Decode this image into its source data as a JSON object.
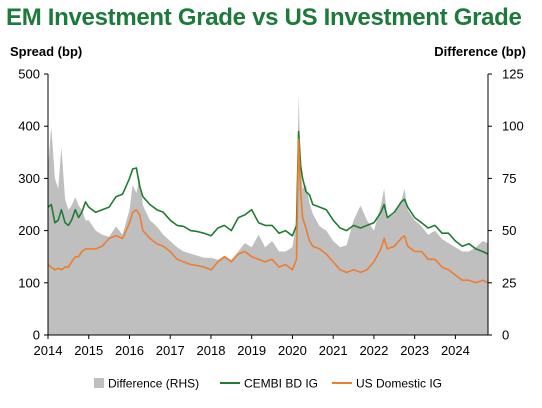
{
  "chart_data": {
    "type": "line",
    "title": "EM Investment Grade vs US Investment Grade",
    "ylabel_left": "Spread (bp)",
    "ylabel_right": "Difference (bp)",
    "x_range": [
      2014.0,
      2024.8
    ],
    "y_left_range": [
      0,
      500
    ],
    "y_right_range": [
      0,
      125
    ],
    "y_left_ticks": [
      "0",
      "100",
      "200",
      "300",
      "400",
      "500"
    ],
    "y_right_ticks": [
      "0",
      "25",
      "50",
      "75",
      "100",
      "125"
    ],
    "x_ticks": [
      "2014",
      "2015",
      "2016",
      "2017",
      "2018",
      "2019",
      "2020",
      "2021",
      "2022",
      "2023",
      "2024"
    ],
    "grid": false,
    "legend_position": "bottom",
    "colors": {
      "difference": "#bfbfbf",
      "cembi": "#1e7d32",
      "us": "#ed7d31",
      "title": "#1d7a3a"
    },
    "series": [
      {
        "name": "Difference (RHS)",
        "axis": "right",
        "style": "area",
        "x": [
          2014.0,
          2014.08,
          2014.17,
          2014.25,
          2014.33,
          2014.42,
          2014.5,
          2014.58,
          2014.67,
          2014.75,
          2014.83,
          2014.92,
          2015.0,
          2015.17,
          2015.33,
          2015.5,
          2015.67,
          2015.83,
          2016.0,
          2016.08,
          2016.17,
          2016.25,
          2016.33,
          2016.5,
          2016.67,
          2016.83,
          2017.0,
          2017.17,
          2017.33,
          2017.5,
          2017.67,
          2017.83,
          2018.0,
          2018.17,
          2018.33,
          2018.5,
          2018.67,
          2018.83,
          2019.0,
          2019.17,
          2019.33,
          2019.5,
          2019.67,
          2019.83,
          2020.0,
          2020.1,
          2020.15,
          2020.2,
          2020.25,
          2020.33,
          2020.42,
          2020.5,
          2020.67,
          2020.83,
          2021.0,
          2021.17,
          2021.33,
          2021.5,
          2021.67,
          2021.83,
          2022.0,
          2022.17,
          2022.25,
          2022.33,
          2022.5,
          2022.67,
          2022.75,
          2022.83,
          2023.0,
          2023.17,
          2023.33,
          2023.5,
          2023.67,
          2023.83,
          2024.0,
          2024.17,
          2024.33,
          2024.5,
          2024.67,
          2024.8
        ],
        "values": [
          80,
          100,
          75,
          70,
          90,
          65,
          60,
          62,
          66,
          62,
          60,
          55,
          55,
          50,
          48,
          47,
          52,
          48,
          60,
          72,
          68,
          75,
          62,
          55,
          52,
          48,
          45,
          42,
          40,
          39,
          38,
          37,
          37,
          36,
          38,
          36,
          40,
          44,
          42,
          48,
          42,
          45,
          40,
          40,
          42,
          55,
          115,
          80,
          70,
          72,
          63,
          58,
          52,
          50,
          45,
          42,
          43,
          55,
          62,
          55,
          50,
          62,
          70,
          56,
          58,
          64,
          70,
          60,
          55,
          52,
          48,
          50,
          46,
          44,
          42,
          40,
          40,
          42,
          45,
          44
        ]
      },
      {
        "name": "CEMBI BD IG",
        "axis": "left",
        "style": "line",
        "x": [
          2014.0,
          2014.08,
          2014.17,
          2014.25,
          2014.33,
          2014.42,
          2014.5,
          2014.58,
          2014.67,
          2014.75,
          2014.83,
          2014.92,
          2015.0,
          2015.17,
          2015.33,
          2015.5,
          2015.67,
          2015.83,
          2016.0,
          2016.08,
          2016.17,
          2016.25,
          2016.33,
          2016.5,
          2016.67,
          2016.83,
          2017.0,
          2017.17,
          2017.33,
          2017.5,
          2017.67,
          2017.83,
          2018.0,
          2018.17,
          2018.33,
          2018.5,
          2018.67,
          2018.83,
          2019.0,
          2019.17,
          2019.33,
          2019.5,
          2019.67,
          2019.83,
          2020.0,
          2020.1,
          2020.15,
          2020.2,
          2020.25,
          2020.33,
          2020.42,
          2020.5,
          2020.67,
          2020.83,
          2021.0,
          2021.17,
          2021.33,
          2021.5,
          2021.67,
          2021.83,
          2022.0,
          2022.17,
          2022.25,
          2022.33,
          2022.5,
          2022.67,
          2022.75,
          2022.83,
          2023.0,
          2023.17,
          2023.33,
          2023.5,
          2023.67,
          2023.83,
          2024.0,
          2024.17,
          2024.33,
          2024.5,
          2024.67,
          2024.8
        ],
        "values": [
          245,
          250,
          215,
          220,
          240,
          215,
          210,
          220,
          240,
          225,
          235,
          255,
          245,
          235,
          240,
          245,
          265,
          270,
          300,
          318,
          320,
          285,
          265,
          250,
          240,
          235,
          220,
          210,
          208,
          200,
          198,
          195,
          190,
          205,
          210,
          200,
          225,
          230,
          240,
          215,
          210,
          210,
          195,
          200,
          190,
          210,
          390,
          325,
          300,
          275,
          268,
          250,
          245,
          240,
          220,
          205,
          200,
          210,
          205,
          210,
          215,
          235,
          250,
          225,
          235,
          255,
          260,
          245,
          225,
          215,
          205,
          210,
          195,
          195,
          180,
          170,
          175,
          165,
          160,
          155
        ]
      },
      {
        "name": "US Domestic IG",
        "axis": "left",
        "style": "line",
        "x": [
          2014.0,
          2014.08,
          2014.17,
          2014.25,
          2014.33,
          2014.42,
          2014.5,
          2014.58,
          2014.67,
          2014.75,
          2014.83,
          2014.92,
          2015.0,
          2015.17,
          2015.33,
          2015.5,
          2015.67,
          2015.83,
          2016.0,
          2016.08,
          2016.17,
          2016.25,
          2016.33,
          2016.5,
          2016.67,
          2016.83,
          2017.0,
          2017.17,
          2017.33,
          2017.5,
          2017.67,
          2017.83,
          2018.0,
          2018.17,
          2018.33,
          2018.5,
          2018.67,
          2018.83,
          2019.0,
          2019.17,
          2019.33,
          2019.5,
          2019.67,
          2019.83,
          2020.0,
          2020.1,
          2020.15,
          2020.2,
          2020.25,
          2020.33,
          2020.42,
          2020.5,
          2020.67,
          2020.83,
          2021.0,
          2021.17,
          2021.33,
          2021.5,
          2021.67,
          2021.83,
          2022.0,
          2022.17,
          2022.25,
          2022.33,
          2022.5,
          2022.67,
          2022.75,
          2022.83,
          2023.0,
          2023.17,
          2023.33,
          2023.5,
          2023.67,
          2023.83,
          2024.0,
          2024.17,
          2024.33,
          2024.5,
          2024.67,
          2024.8
        ],
        "values": [
          135,
          130,
          125,
          128,
          125,
          130,
          130,
          140,
          150,
          150,
          160,
          165,
          165,
          165,
          170,
          185,
          190,
          185,
          215,
          235,
          240,
          230,
          200,
          185,
          175,
          170,
          160,
          145,
          140,
          135,
          133,
          130,
          125,
          140,
          150,
          140,
          155,
          160,
          150,
          145,
          140,
          145,
          130,
          135,
          125,
          145,
          375,
          275,
          225,
          205,
          180,
          170,
          165,
          155,
          140,
          125,
          120,
          125,
          120,
          125,
          140,
          165,
          185,
          165,
          170,
          185,
          190,
          170,
          160,
          160,
          145,
          145,
          130,
          125,
          115,
          105,
          105,
          100,
          105,
          100
        ]
      }
    ]
  }
}
